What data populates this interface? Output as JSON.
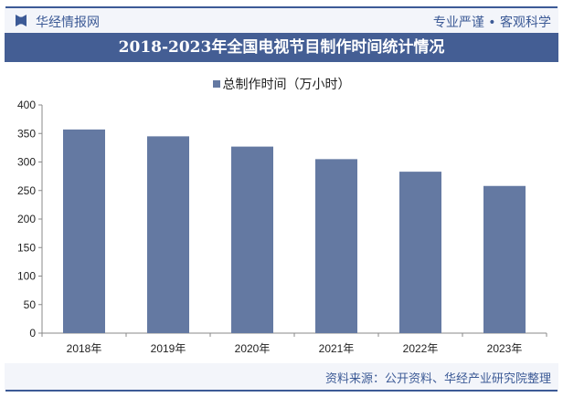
{
  "header": {
    "brand": "华经情报网",
    "slogan": "专业严谨 • 客观科学"
  },
  "title": "2018-2023年全国电视节目制作时间统计情况",
  "footer": {
    "source": "资料来源：公开资料、华经产业研究院整理"
  },
  "watermark": "华经产业研究院",
  "colors": {
    "bar": "#6479a2",
    "accent": "#445e94"
  },
  "chart_data": {
    "type": "bar",
    "title": "2018-2023年全国电视节目制作时间统计情况",
    "categories": [
      "2018年",
      "2019年",
      "2020年",
      "2021年",
      "2022年",
      "2023年"
    ],
    "series": [
      {
        "name": "总制作时间（万小时）",
        "values": [
          357,
          345,
          327,
          305,
          283,
          258
        ]
      }
    ],
    "ylim": [
      0,
      400
    ],
    "yticks": [
      0,
      50,
      100,
      150,
      200,
      250,
      300,
      350,
      400
    ],
    "grid": false,
    "legend": "top"
  }
}
